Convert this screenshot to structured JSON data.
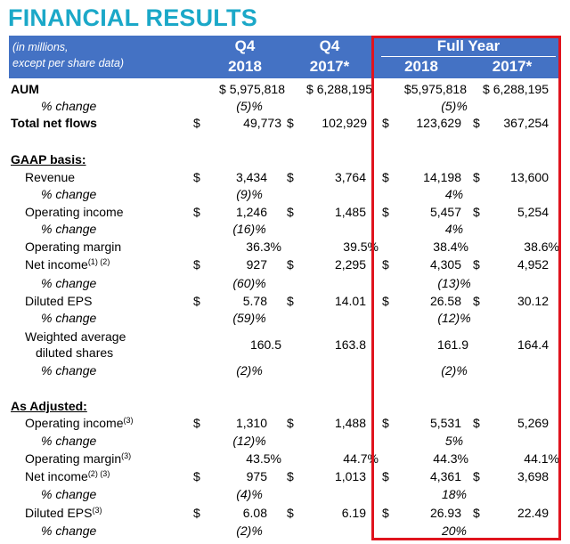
{
  "title": "FINANCIAL RESULTS",
  "header": {
    "note_line1": "(in millions,",
    "note_line2": "except per share data)",
    "q4_2018_top": "Q4",
    "q4_2018_bottom": "2018",
    "q4_2017_top": "Q4",
    "q4_2017_bottom": "2017*",
    "full_year": "Full Year",
    "fy_2018": "2018",
    "fy_2017": "2017*"
  },
  "aum": {
    "label": "AUM",
    "q4_2018": "$ 5,975,818",
    "q4_2017": "$ 6,288,195",
    "fy_2018": "$5,975,818",
    "fy_2017": "$ 6,288,195"
  },
  "aum_change": {
    "label": "% change",
    "q4": "(5)%",
    "fy": "(5)%"
  },
  "net_flows": {
    "label": "Total net flows",
    "q4_2018": "49,773",
    "q4_2017": "102,929",
    "fy_2018": "123,629",
    "fy_2017": "367,254"
  },
  "gaap_heading": "GAAP basis:",
  "revenue": {
    "label": "Revenue",
    "q4_2018": "3,434",
    "q4_2017": "3,764",
    "fy_2018": "14,198",
    "fy_2017": "13,600"
  },
  "revenue_change": {
    "label": "% change",
    "q4": "(9)%",
    "fy": "4%"
  },
  "op_income": {
    "label": "Operating income",
    "q4_2018": "1,246",
    "q4_2017": "1,485",
    "fy_2018": "5,457",
    "fy_2017": "5,254"
  },
  "op_income_change": {
    "label": "% change",
    "q4": "(16)%",
    "fy": "4%"
  },
  "op_margin": {
    "label": "Operating margin",
    "q4_2018": "36.3%",
    "q4_2017": "39.5%",
    "fy_2018": "38.4%",
    "fy_2017": "38.6%"
  },
  "net_income": {
    "label": "Net income",
    "sup": "(1) (2)",
    "q4_2018": "927",
    "q4_2017": "2,295",
    "fy_2018": "4,305",
    "fy_2017": "4,952"
  },
  "net_income_change": {
    "label": "% change",
    "q4": "(60)%",
    "fy": "(13)%"
  },
  "eps": {
    "label": "Diluted EPS",
    "q4_2018": "5.78",
    "q4_2017": "14.01",
    "fy_2018": "26.58",
    "fy_2017": "30.12"
  },
  "eps_change": {
    "label": "% change",
    "q4": "(59)%",
    "fy": "(12)%"
  },
  "shares": {
    "label_line1": "Weighted average",
    "label_line2": "diluted shares",
    "q4_2018": "160.5",
    "q4_2017": "163.8",
    "fy_2018": "161.9",
    "fy_2017": "164.4"
  },
  "shares_change": {
    "label": "% change",
    "q4": "(2)%",
    "fy": "(2)%"
  },
  "adjusted_heading": "As Adjusted:",
  "adj_op_income": {
    "label": "Operating income",
    "sup": "(3)",
    "q4_2018": "1,310",
    "q4_2017": "1,488",
    "fy_2018": "5,531",
    "fy_2017": "5,269"
  },
  "adj_op_income_change": {
    "label": "% change",
    "q4": "(12)%",
    "fy": "5%"
  },
  "adj_op_margin": {
    "label": "Operating margin",
    "sup": "(3)",
    "q4_2018": "43.5%",
    "q4_2017": "44.7%",
    "fy_2018": "44.3%",
    "fy_2017": "44.1%"
  },
  "adj_net_income": {
    "label": "Net income",
    "sup": "(2) (3)",
    "q4_2018": "975",
    "q4_2017": "1,013",
    "fy_2018": "4,361",
    "fy_2017": "3,698"
  },
  "adj_net_income_change": {
    "label": "% change",
    "q4": "(4)%",
    "fy": "18%"
  },
  "adj_eps": {
    "label": "Diluted EPS",
    "sup": "(3)",
    "q4_2018": "6.08",
    "q4_2017": "6.19",
    "fy_2018": "26.93",
    "fy_2017": "22.49"
  },
  "adj_eps_change": {
    "label": "% change",
    "q4": "(2)%",
    "fy": "20%"
  },
  "dollar": "$",
  "colors": {
    "title": "#1ba8c8",
    "header_bg": "#4472c4",
    "highlight_border": "#e0141e"
  }
}
